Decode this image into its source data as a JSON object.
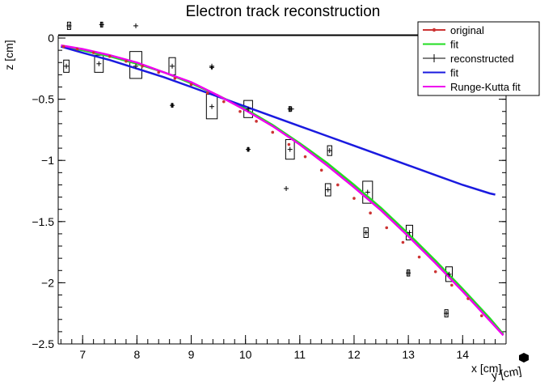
{
  "chart_data": {
    "type": "scatter",
    "title": "Electron track reconstruction",
    "xlabel": "x [cm]",
    "ylabel": "z [cm]",
    "xlabel2": "y [cm]",
    "xlim": [
      6.55,
      14.8
    ],
    "ylim": [
      -2.5,
      0.02
    ],
    "x_ticks": [
      7,
      8,
      9,
      10,
      11,
      12,
      13,
      14
    ],
    "y_ticks": [
      0,
      -0.5,
      -1,
      -1.5,
      -2,
      -2.5
    ],
    "y_tick_labels": [
      "0",
      "−0.5",
      "−1",
      "−1.5",
      "−2",
      "−2.5"
    ],
    "grid": false,
    "legend_position": "top-right",
    "colors": {
      "original": "#cc3333",
      "fit_original": "#22dd22",
      "reconstructed": "#000000",
      "fit_reconstructed": "#1a1adf",
      "runge_kutta": "#ee00ee"
    },
    "legend": [
      {
        "label": "original",
        "style": "marker-line",
        "color": "#cc3333"
      },
      {
        "label": "fit",
        "style": "line",
        "color": "#22dd22"
      },
      {
        "label": "reconstructed",
        "style": "cross",
        "color": "#000000"
      },
      {
        "label": "fit",
        "style": "line",
        "color": "#1a1adf"
      },
      {
        "label": "Runge-Kutta fit",
        "style": "line",
        "color": "#ee00ee"
      }
    ],
    "series": [
      {
        "name": "original",
        "kind": "points",
        "x": [
          6.65,
          6.9,
          7.2,
          7.5,
          7.8,
          8.1,
          8.4,
          8.7,
          9.0,
          9.3,
          9.6,
          9.9,
          10.2,
          10.5,
          10.8,
          11.1,
          11.4,
          11.7,
          12.0,
          12.3,
          12.6,
          12.9,
          13.2,
          13.5,
          13.8,
          14.1,
          14.35
        ],
        "y": [
          -0.07,
          -0.09,
          -0.12,
          -0.15,
          -0.19,
          -0.23,
          -0.28,
          -0.33,
          -0.38,
          -0.45,
          -0.52,
          -0.6,
          -0.68,
          -0.77,
          -0.87,
          -0.97,
          -1.08,
          -1.2,
          -1.31,
          -1.43,
          -1.55,
          -1.67,
          -1.79,
          -1.91,
          -2.02,
          -2.13,
          -2.27
        ]
      },
      {
        "name": "fit",
        "kind": "line",
        "x": [
          6.6,
          7.0,
          7.5,
          8.0,
          8.5,
          9.0,
          9.5,
          10.0,
          10.5,
          11.0,
          11.5,
          12.0,
          12.5,
          13.0,
          13.5,
          14.0,
          14.5,
          14.75
        ],
        "y": [
          -0.07,
          -0.1,
          -0.15,
          -0.21,
          -0.28,
          -0.37,
          -0.47,
          -0.58,
          -0.71,
          -0.86,
          -1.02,
          -1.2,
          -1.39,
          -1.6,
          -1.82,
          -2.05,
          -2.29,
          -2.42
        ]
      },
      {
        "name": "reconstructed",
        "kind": "points",
        "x": [
          6.7,
          6.75,
          7.3,
          7.35,
          7.98,
          7.98,
          8.65,
          8.65,
          9.38,
          9.38,
          9.38,
          10.05,
          10.05,
          10.82,
          10.82,
          10.75,
          11.55,
          11.52,
          12.25,
          12.22,
          13.02,
          13.0,
          13.75,
          13.7,
          10.85
        ],
        "y": [
          -0.23,
          0.1,
          -0.21,
          0.11,
          -0.23,
          0.1,
          -0.23,
          -0.55,
          -0.56,
          -0.24,
          -0.23,
          -0.58,
          -0.91,
          -0.58,
          -0.91,
          -1.23,
          -0.92,
          -1.24,
          -1.26,
          -1.59,
          -1.59,
          -1.92,
          -1.93,
          -2.25,
          -0.58
        ]
      },
      {
        "name": "fit",
        "kind": "line",
        "x": [
          6.6,
          7.0,
          7.5,
          8.0,
          8.5,
          9.0,
          9.5,
          10.0,
          10.5,
          11.0,
          11.5,
          12.0,
          12.5,
          13.0,
          13.5,
          14.0,
          14.5,
          14.6
        ],
        "y": [
          -0.07,
          -0.12,
          -0.18,
          -0.25,
          -0.32,
          -0.4,
          -0.48,
          -0.56,
          -0.64,
          -0.72,
          -0.8,
          -0.88,
          -0.96,
          -1.04,
          -1.12,
          -1.2,
          -1.27,
          -1.28
        ]
      },
      {
        "name": "Runge-Kutta fit",
        "kind": "line",
        "x": [
          6.6,
          7.0,
          7.5,
          8.0,
          8.5,
          9.0,
          9.5,
          10.0,
          10.5,
          11.0,
          11.5,
          12.0,
          12.5,
          13.0,
          13.5,
          14.0,
          14.5,
          14.75
        ],
        "y": [
          -0.06,
          -0.09,
          -0.14,
          -0.2,
          -0.28,
          -0.36,
          -0.47,
          -0.59,
          -0.72,
          -0.87,
          -1.04,
          -1.22,
          -1.41,
          -1.62,
          -1.84,
          -2.07,
          -2.31,
          -2.43
        ]
      }
    ],
    "error_boxes": [
      {
        "x": 6.7,
        "y": -0.23,
        "dx": 0.05,
        "dz": 0.05
      },
      {
        "x": 6.75,
        "y": 0.1,
        "dx": 0.03,
        "dz": 0.03
      },
      {
        "x": 7.3,
        "y": -0.21,
        "dx": 0.08,
        "dz": 0.07
      },
      {
        "x": 7.35,
        "y": 0.11,
        "dx": 0.02,
        "dz": 0.02
      },
      {
        "x": 7.98,
        "y": -0.22,
        "dx": 0.11,
        "dz": 0.11
      },
      {
        "x": 8.65,
        "y": -0.23,
        "dx": 0.06,
        "dz": 0.07
      },
      {
        "x": 8.65,
        "y": -0.55,
        "dx": 0.015,
        "dz": 0.015
      },
      {
        "x": 9.38,
        "y": -0.56,
        "dx": 0.1,
        "dz": 0.1
      },
      {
        "x": 9.38,
        "y": -0.24,
        "dx": 0.01,
        "dz": 0.01
      },
      {
        "x": 10.05,
        "y": -0.58,
        "dx": 0.08,
        "dz": 0.07
      },
      {
        "x": 10.05,
        "y": -0.91,
        "dx": 0.015,
        "dz": 0.015
      },
      {
        "x": 10.82,
        "y": -0.58,
        "dx": 0.02,
        "dz": 0.02
      },
      {
        "x": 10.82,
        "y": -0.91,
        "dx": 0.08,
        "dz": 0.08
      },
      {
        "x": 11.55,
        "y": -0.92,
        "dx": 0.04,
        "dz": 0.04
      },
      {
        "x": 11.52,
        "y": -1.24,
        "dx": 0.05,
        "dz": 0.05
      },
      {
        "x": 12.25,
        "y": -1.26,
        "dx": 0.09,
        "dz": 0.09
      },
      {
        "x": 12.22,
        "y": -1.59,
        "dx": 0.04,
        "dz": 0.04
      },
      {
        "x": 13.02,
        "y": -1.59,
        "dx": 0.06,
        "dz": 0.06
      },
      {
        "x": 13.0,
        "y": -1.92,
        "dx": 0.025,
        "dz": 0.025
      },
      {
        "x": 13.75,
        "y": -1.93,
        "dx": 0.06,
        "dz": 0.06
      },
      {
        "x": 13.7,
        "y": -2.25,
        "dx": 0.03,
        "dz": 0.03
      }
    ]
  }
}
